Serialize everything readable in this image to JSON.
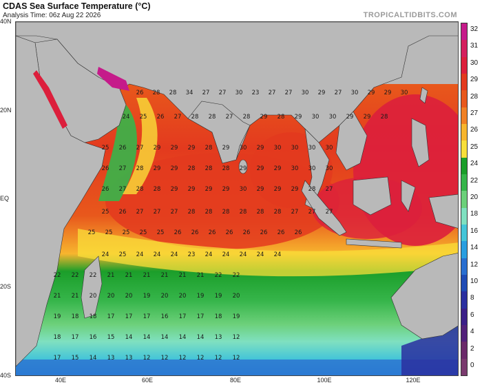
{
  "header": {
    "title": "CDAS Sea Surface Temperature (°C)",
    "analysis_time": "Analysis Time: 06z Aug 22 2026",
    "brand": "TROPICALTIDBITS.COM"
  },
  "axes": {
    "lat_labels": [
      "40N",
      "20N",
      "EQ",
      "20S",
      "40S"
    ],
    "lon_labels": [
      "40E",
      "60E",
      "80E",
      "100E",
      "120E"
    ]
  },
  "colorbar": {
    "labels": [
      "32",
      "31",
      "30",
      "29",
      "28",
      "27",
      "26",
      "25",
      "24",
      "22",
      "20",
      "18",
      "16",
      "14",
      "12",
      "10",
      "8",
      "6",
      "4",
      "2",
      "0"
    ],
    "colors": [
      "#c51b8a",
      "#d41f5d",
      "#dc1f3c",
      "#e33a1e",
      "#e8581c",
      "#f08024",
      "#f7b52e",
      "#f9df3a",
      "#1b9e2a",
      "#36b54a",
      "#6cd07a",
      "#7fe0c0",
      "#44c5d8",
      "#2a9ee0",
      "#2a6fd0",
      "#1f4bb5",
      "#2a2fa0",
      "#3b1f88",
      "#52217a",
      "#6b2a6a",
      "#7a3a6e"
    ]
  },
  "map": {
    "land_color": "#b9b9b9",
    "warm_pool_color": "#dc1f3c"
  },
  "sst_values": [
    "26",
    "28",
    "28",
    "34",
    "27",
    "27",
    "30",
    "23",
    "27",
    "27",
    "30",
    "29",
    "27",
    "30",
    "29",
    "29",
    "30",
    "24",
    "25",
    "26",
    "27",
    "28",
    "28",
    "27",
    "28",
    "29",
    "28",
    "29",
    "30",
    "30",
    "29",
    "29",
    "28",
    "25",
    "26",
    "27",
    "29",
    "29",
    "29",
    "28",
    "29",
    "30",
    "29",
    "30",
    "30",
    "30",
    "30",
    "26",
    "27",
    "28",
    "29",
    "29",
    "28",
    "28",
    "28",
    "29",
    "29",
    "29",
    "30",
    "30",
    "30",
    "26",
    "27",
    "28",
    "28",
    "29",
    "29",
    "29",
    "29",
    "30",
    "29",
    "29",
    "29",
    "28",
    "27",
    "25",
    "26",
    "27",
    "27",
    "27",
    "28",
    "28",
    "28",
    "28",
    "28",
    "28",
    "27",
    "27",
    "27",
    "25",
    "25",
    "25",
    "25",
    "25",
    "26",
    "26",
    "26",
    "26",
    "26",
    "26",
    "26",
    "26",
    "24",
    "25",
    "24",
    "24",
    "24",
    "23",
    "24",
    "24",
    "24",
    "24",
    "24",
    "22",
    "22",
    "22",
    "21",
    "21",
    "21",
    "21",
    "21",
    "21",
    "22",
    "22",
    "21",
    "21",
    "20",
    "20",
    "20",
    "19",
    "20",
    "20",
    "19",
    "19",
    "20",
    "19",
    "18",
    "18",
    "17",
    "17",
    "17",
    "16",
    "17",
    "17",
    "18",
    "19",
    "18",
    "17",
    "16",
    "15",
    "14",
    "14",
    "14",
    "14",
    "14",
    "13",
    "12",
    "17",
    "15",
    "14",
    "13",
    "13",
    "12",
    "12",
    "12",
    "12",
    "12",
    "12"
  ]
}
